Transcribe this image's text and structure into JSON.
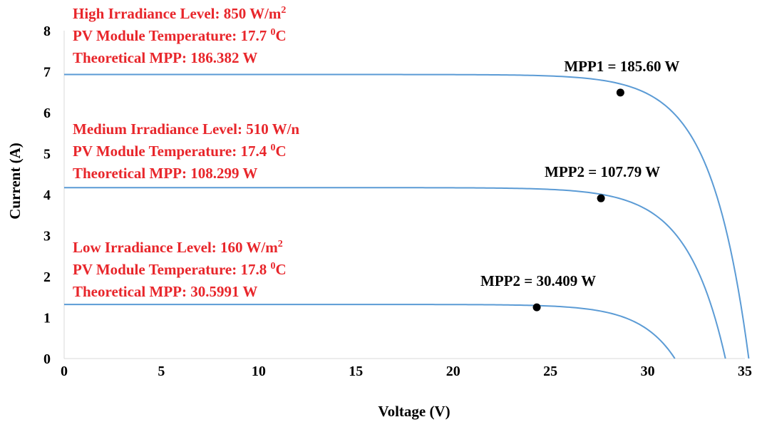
{
  "chart_data": {
    "type": "line",
    "xlabel": "Voltage (V)",
    "ylabel": "Current (A)",
    "xlim": [
      0,
      35
    ],
    "ylim": [
      0,
      8
    ],
    "xticks": [
      0,
      5,
      10,
      15,
      20,
      25,
      30,
      35
    ],
    "yticks": [
      0,
      1,
      2,
      3,
      4,
      5,
      6,
      7,
      8
    ],
    "grid": false,
    "series_color": "#5b9bd5",
    "annotation_color": "#e8262b",
    "marker_color": "#000000",
    "series": [
      {
        "isc": 6.93,
        "voc": 35.2,
        "shape": 0.055,
        "mpp": {
          "label": "MPP1 = 185.60 W",
          "x": 28.6,
          "y": 6.49
        }
      },
      {
        "isc": 4.17,
        "voc": 34.0,
        "shape": 0.058,
        "mpp": {
          "label": "MPP2 = 107.79 W",
          "x": 27.6,
          "y": 3.91
        }
      },
      {
        "isc": 1.32,
        "voc": 31.4,
        "shape": 0.058,
        "mpp": {
          "label": "MPP2 = 30.409 W",
          "x": 24.3,
          "y": 1.25
        }
      }
    ],
    "annotations": [
      {
        "lines": [
          {
            "text": "High Irradiance Level: 850 W/m",
            "sup": "2",
            "after": ""
          },
          {
            "text": "PV Module Temperature: 17.7 ",
            "sup": "0",
            "after": "C"
          },
          {
            "text": "Theoretical MPP: 186.382 W",
            "sup": "",
            "after": ""
          }
        ]
      },
      {
        "lines": [
          {
            "text": "Medium Irradiance Level: 510 W/n",
            "sup": "",
            "after": ""
          },
          {
            "text": "PV Module Temperature: 17.4 ",
            "sup": "0",
            "after": "C"
          },
          {
            "text": "Theoretical MPP: 108.299 W",
            "sup": "",
            "after": ""
          }
        ]
      },
      {
        "lines": [
          {
            "text": "Low Irradiance Level: 160 W/m",
            "sup": "2",
            "after": ""
          },
          {
            "text": "PV Module Temperature: 17.8 ",
            "sup": "0",
            "after": "C"
          },
          {
            "text": "Theoretical MPP: 30.5991 W",
            "sup": "",
            "after": ""
          }
        ]
      }
    ]
  }
}
